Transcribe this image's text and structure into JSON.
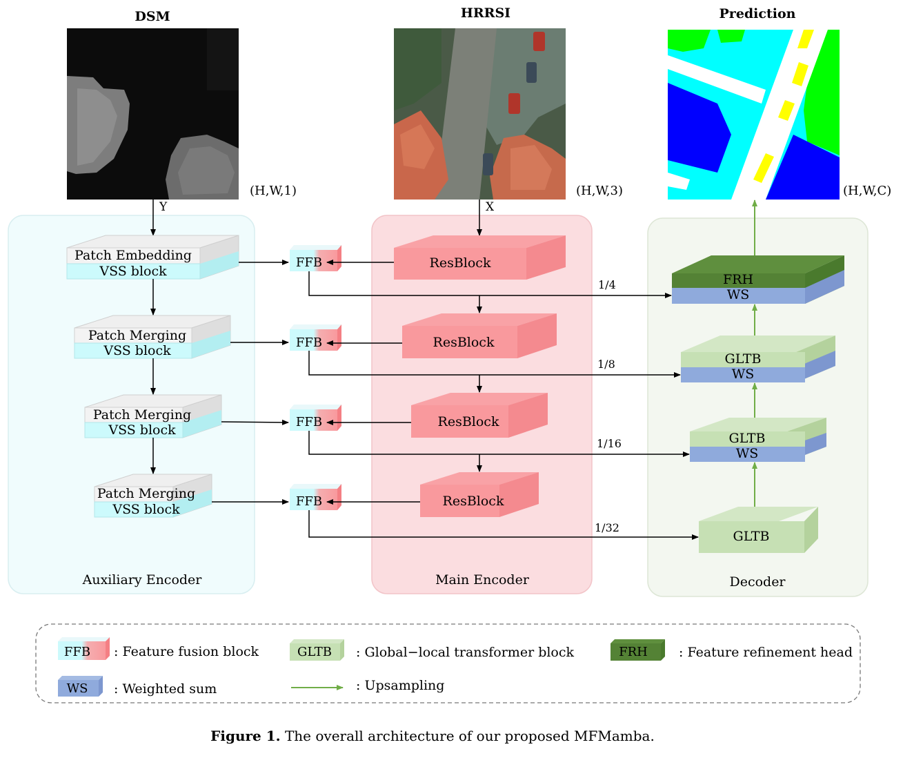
{
  "images": {
    "dsm": {
      "title": "DSM",
      "shape": "(H,W,1)",
      "symbol": "Y"
    },
    "hrrsi": {
      "title": "HRRSI",
      "shape": "(H,W,3)",
      "symbol": "X"
    },
    "prediction": {
      "title": "Prediction",
      "shape": "(H,W,C)"
    }
  },
  "auxiliary_encoder": {
    "label": "Auxiliary Encoder",
    "blocks": [
      {
        "top": "Patch Embedding",
        "bottom": "VSS block"
      },
      {
        "top": "Patch Merging",
        "bottom": "VSS block"
      },
      {
        "top": "Patch Merging",
        "bottom": "VSS block"
      },
      {
        "top": "Patch Merging",
        "bottom": "VSS block"
      }
    ]
  },
  "main_encoder": {
    "label": "Main Encoder",
    "blocks": [
      "ResBlock",
      "ResBlock",
      "ResBlock",
      "ResBlock"
    ]
  },
  "ffb_label": "FFB",
  "scales": [
    "1/4",
    "1/8",
    "1/16",
    "1/32"
  ],
  "decoder": {
    "label": "Decoder",
    "blocks": [
      {
        "top": "FRH",
        "bottom": "WS"
      },
      {
        "top": "GLTB",
        "bottom": "WS"
      },
      {
        "top": "GLTB",
        "bottom": "WS"
      },
      {
        "top": "GLTB"
      }
    ]
  },
  "legend": {
    "ffb": {
      "symbol": "FFB",
      "text": ": Feature fusion block"
    },
    "gltb": {
      "symbol": "GLTB",
      "text": ": Global−local transformer block"
    },
    "frh": {
      "symbol": "FRH",
      "text": ": Feature refinement head"
    },
    "ws": {
      "symbol": "WS",
      "text": ": Weighted sum"
    },
    "upsampling": {
      "text": ": Upsampling"
    }
  },
  "caption": {
    "label": "Figure 1.",
    "text": " The overall architecture of our proposed MFMamba."
  },
  "colors": {
    "aux_bg": "#f0fcfd",
    "main_bg": "#fbdde0",
    "dec_bg": "#f3f7f0",
    "cyan_block": "#ccfafc",
    "gray_block": "#f3f3f3",
    "red_block": "#f9999d",
    "light_green": "#c6e0b4",
    "dark_green": "#548235",
    "blue_ws": "#8faadc",
    "upsample_arrow": "#70ad47"
  }
}
